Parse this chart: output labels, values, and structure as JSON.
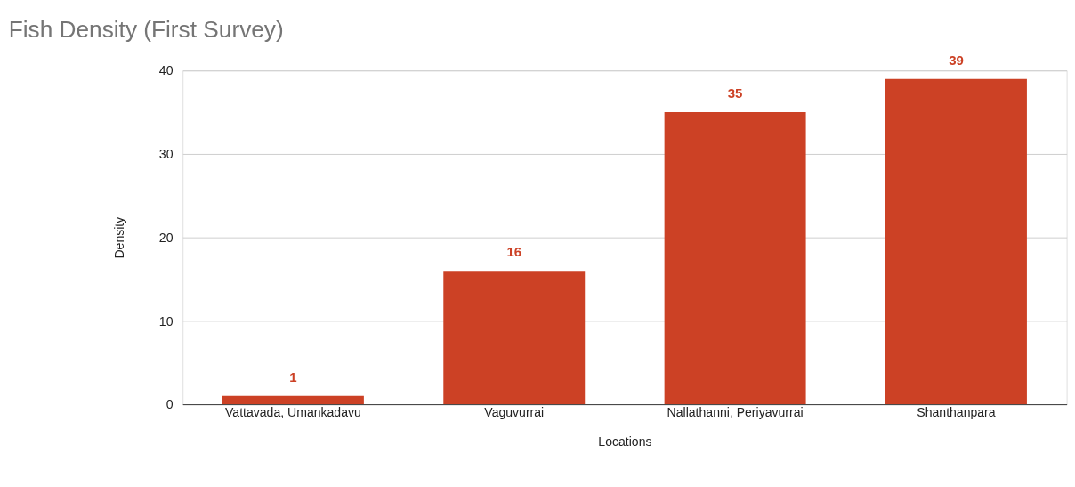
{
  "chart_data": {
    "type": "bar",
    "title": "Fish Density (First Survey)",
    "xlabel": "Locations",
    "ylabel": "Density",
    "categories": [
      "Vattavada, Umankadavu",
      "Vaguvurrai",
      "Nallathanni, Periyavurrai",
      "Shanthanpara"
    ],
    "values": [
      1,
      16,
      35,
      39
    ],
    "color": "#cc4125",
    "ylim": [
      0,
      40
    ],
    "yticks": [
      0,
      10,
      20,
      30,
      40
    ],
    "grid": "y",
    "data_labels": true
  }
}
